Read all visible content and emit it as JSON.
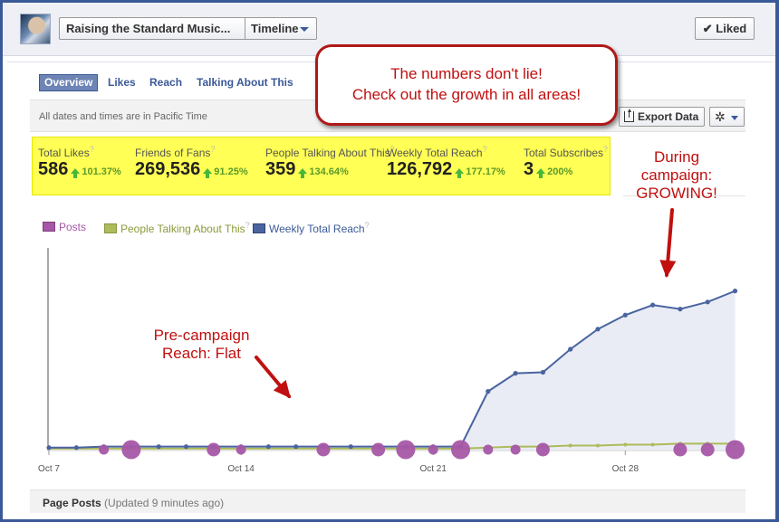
{
  "header": {
    "page_button": "Raising the Standard Music...",
    "timeline_button": "Timeline",
    "liked_button": "Liked"
  },
  "tabs": [
    {
      "label": "Overview",
      "active": true
    },
    {
      "label": "Likes",
      "active": false
    },
    {
      "label": "Reach",
      "active": false
    },
    {
      "label": "Talking About This",
      "active": false
    }
  ],
  "toolbar": {
    "timezone_note": "All dates and times are in Pacific Time",
    "export_label": "Export Data",
    "gear_icon": "gear-icon"
  },
  "stats": [
    {
      "label": "Total Likes",
      "value": "586",
      "change": "101.37%"
    },
    {
      "label": "Friends of Fans",
      "value": "269,536",
      "change": "91.25%"
    },
    {
      "label": "People Talking About This",
      "value": "359",
      "change": "134.64%"
    },
    {
      "label": "Weekly Total Reach",
      "value": "126,792",
      "change": "177.17%"
    },
    {
      "label": "Total Subscribes",
      "value": "3",
      "change": "200%"
    }
  ],
  "help_mark": "?",
  "annotations": {
    "callout_line1": "The numbers don't lie!",
    "callout_line2": "Check out the growth in all areas!",
    "pre_line1": "Pre-campaign",
    "pre_line2": "Reach: Flat",
    "during_line1": "During",
    "during_line2": "campaign:",
    "during_line3": "GROWING!"
  },
  "colors": {
    "posts": "#a657a6",
    "talking": "#adbb5a",
    "reach": "#4a64a0",
    "reach_fill": "#e9ecf5",
    "annotation": "#c01010",
    "highlight": "#ffff55"
  },
  "chart_data": {
    "type": "line",
    "x": [
      0,
      1,
      2,
      3,
      4,
      5,
      6,
      7,
      8,
      9,
      10,
      11,
      12,
      13,
      14,
      15,
      16,
      17,
      18,
      19,
      20,
      21,
      22,
      23,
      24,
      25
    ],
    "x_ticks": [
      {
        "index": 0,
        "label": "Oct 7"
      },
      {
        "index": 7,
        "label": "Oct 14"
      },
      {
        "index": 14,
        "label": "Oct 21"
      },
      {
        "index": 21,
        "label": "Oct 28"
      }
    ],
    "ylim": [
      0,
      100
    ],
    "series": [
      {
        "name": "Posts",
        "type": "bubble",
        "points": [
          {
            "x": 2,
            "size": 1
          },
          {
            "x": 3,
            "size": 3
          },
          {
            "x": 6,
            "size": 2
          },
          {
            "x": 7,
            "size": 1
          },
          {
            "x": 10,
            "size": 2
          },
          {
            "x": 12,
            "size": 2
          },
          {
            "x": 13,
            "size": 3
          },
          {
            "x": 14,
            "size": 1
          },
          {
            "x": 15,
            "size": 3
          },
          {
            "x": 16,
            "size": 1
          },
          {
            "x": 17,
            "size": 1
          },
          {
            "x": 18,
            "size": 2
          },
          {
            "x": 23,
            "size": 2
          },
          {
            "x": 24,
            "size": 2
          },
          {
            "x": 25,
            "size": 3
          }
        ]
      },
      {
        "name": "People Talking About This",
        "values": [
          0.5,
          0.5,
          0.5,
          0.5,
          0.5,
          0.5,
          0.5,
          0.5,
          0.5,
          0.5,
          0.5,
          0.5,
          0.5,
          0.5,
          0.5,
          0.5,
          1,
          1.5,
          1.5,
          2,
          2,
          2.5,
          2.5,
          3,
          3,
          3
        ]
      },
      {
        "name": "Weekly Total Reach",
        "values": [
          1,
          1,
          1.5,
          1.5,
          1.5,
          1.5,
          1.5,
          1.5,
          1.5,
          1.5,
          1.5,
          1.5,
          1.5,
          1.5,
          1.5,
          1.5,
          29,
          38,
          38.5,
          50,
          60,
          67,
          72,
          70,
          73.5,
          79
        ]
      }
    ]
  },
  "footer": {
    "title": "Page Posts",
    "subtitle": "(Updated 9 minutes ago)"
  }
}
